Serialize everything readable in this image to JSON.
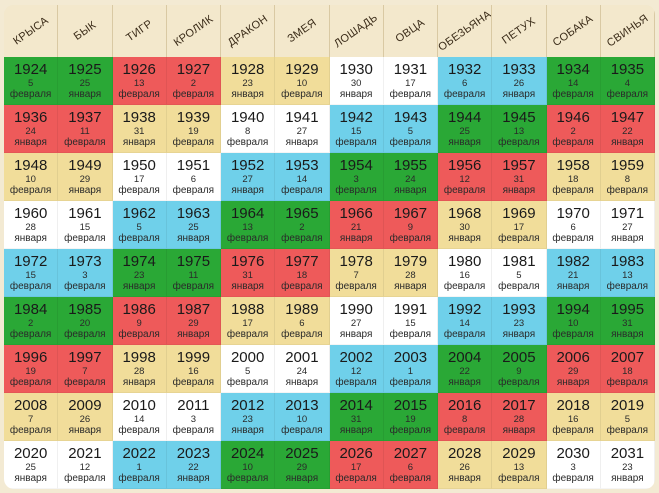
{
  "header": [
    "КРЫСА",
    "БЫК",
    "ТИГР",
    "КРОЛИК",
    "ДРАКОН",
    "ЗМЕЯ",
    "ЛОШАДЬ",
    "ОВЦА",
    "ОБЕЗЬЯНА",
    "ПЕТУХ",
    "СОБАКА",
    "СВИНЬЯ"
  ],
  "palette": {
    "green": "#2aa836",
    "red": "#ee5a5a",
    "yellow": "#f1dd9a",
    "white": "#ffffff",
    "blue": "#6fd0ea"
  },
  "rows": [
    [
      [
        "1924",
        "5",
        "февраля",
        "green"
      ],
      [
        "1925",
        "25",
        "января",
        "green"
      ],
      [
        "1926",
        "13",
        "февраля",
        "red"
      ],
      [
        "1927",
        "2",
        "февраля",
        "red"
      ],
      [
        "1928",
        "23",
        "января",
        "yellow"
      ],
      [
        "1929",
        "10",
        "февраля",
        "yellow"
      ],
      [
        "1930",
        "30",
        "января",
        "white"
      ],
      [
        "1931",
        "17",
        "февраля",
        "white"
      ],
      [
        "1932",
        "6",
        "февраля",
        "blue"
      ],
      [
        "1933",
        "26",
        "января",
        "blue"
      ],
      [
        "1934",
        "14",
        "февраля",
        "green"
      ],
      [
        "1935",
        "4",
        "февраля",
        "green"
      ]
    ],
    [
      [
        "1936",
        "24",
        "января",
        "red"
      ],
      [
        "1937",
        "11",
        "февраля",
        "red"
      ],
      [
        "1938",
        "31",
        "января",
        "yellow"
      ],
      [
        "1939",
        "19",
        "февраля",
        "yellow"
      ],
      [
        "1940",
        "8",
        "февраля",
        "white"
      ],
      [
        "1941",
        "27",
        "января",
        "white"
      ],
      [
        "1942",
        "15",
        "февраля",
        "blue"
      ],
      [
        "1943",
        "5",
        "февраля",
        "blue"
      ],
      [
        "1944",
        "25",
        "января",
        "green"
      ],
      [
        "1945",
        "13",
        "февраля",
        "green"
      ],
      [
        "1946",
        "2",
        "февраля",
        "red"
      ],
      [
        "1947",
        "22",
        "января",
        "red"
      ]
    ],
    [
      [
        "1948",
        "10",
        "февраля",
        "yellow"
      ],
      [
        "1949",
        "29",
        "января",
        "yellow"
      ],
      [
        "1950",
        "17",
        "февраля",
        "white"
      ],
      [
        "1951",
        "6",
        "февраля",
        "white"
      ],
      [
        "1952",
        "27",
        "января",
        "blue"
      ],
      [
        "1953",
        "14",
        "февраля",
        "blue"
      ],
      [
        "1954",
        "3",
        "февраля",
        "green"
      ],
      [
        "1955",
        "24",
        "января",
        "green"
      ],
      [
        "1956",
        "12",
        "февраля",
        "red"
      ],
      [
        "1957",
        "31",
        "января",
        "red"
      ],
      [
        "1958",
        "18",
        "февраля",
        "yellow"
      ],
      [
        "1959",
        "8",
        "февраля",
        "yellow"
      ]
    ],
    [
      [
        "1960",
        "28",
        "января",
        "white"
      ],
      [
        "1961",
        "15",
        "февраля",
        "white"
      ],
      [
        "1962",
        "5",
        "февраля",
        "blue"
      ],
      [
        "1963",
        "25",
        "января",
        "blue"
      ],
      [
        "1964",
        "13",
        "февраля",
        "green"
      ],
      [
        "1965",
        "2",
        "февраля",
        "green"
      ],
      [
        "1966",
        "21",
        "января",
        "red"
      ],
      [
        "1967",
        "9",
        "февраля",
        "red"
      ],
      [
        "1968",
        "30",
        "января",
        "yellow"
      ],
      [
        "1969",
        "17",
        "февраля",
        "yellow"
      ],
      [
        "1970",
        "6",
        "февраля",
        "white"
      ],
      [
        "1971",
        "27",
        "января",
        "white"
      ]
    ],
    [
      [
        "1972",
        "15",
        "февраля",
        "blue"
      ],
      [
        "1973",
        "3",
        "февраля",
        "blue"
      ],
      [
        "1974",
        "23",
        "января",
        "green"
      ],
      [
        "1975",
        "11",
        "февраля",
        "green"
      ],
      [
        "1976",
        "31",
        "января",
        "red"
      ],
      [
        "1977",
        "18",
        "февраля",
        "red"
      ],
      [
        "1978",
        "7",
        "февраля",
        "yellow"
      ],
      [
        "1979",
        "28",
        "января",
        "yellow"
      ],
      [
        "1980",
        "16",
        "февраля",
        "white"
      ],
      [
        "1981",
        "5",
        "февраля",
        "white"
      ],
      [
        "1982",
        "21",
        "января",
        "blue"
      ],
      [
        "1983",
        "13",
        "февраля",
        "blue"
      ]
    ],
    [
      [
        "1984",
        "2",
        "февраля",
        "green"
      ],
      [
        "1985",
        "20",
        "февраля",
        "green"
      ],
      [
        "1986",
        "9",
        "февраля",
        "red"
      ],
      [
        "1987",
        "29",
        "января",
        "red"
      ],
      [
        "1988",
        "17",
        "февраля",
        "yellow"
      ],
      [
        "1989",
        "6",
        "февраля",
        "yellow"
      ],
      [
        "1990",
        "27",
        "января",
        "white"
      ],
      [
        "1991",
        "15",
        "февраля",
        "white"
      ],
      [
        "1992",
        "14",
        "февраля",
        "blue"
      ],
      [
        "1993",
        "23",
        "января",
        "blue"
      ],
      [
        "1994",
        "10",
        "февраля",
        "green"
      ],
      [
        "1995",
        "31",
        "января",
        "green"
      ]
    ],
    [
      [
        "1996",
        "19",
        "февраля",
        "red"
      ],
      [
        "1997",
        "7",
        "февраля",
        "red"
      ],
      [
        "1998",
        "28",
        "января",
        "yellow"
      ],
      [
        "1999",
        "16",
        "февраля",
        "yellow"
      ],
      [
        "2000",
        "5",
        "февраля",
        "white"
      ],
      [
        "2001",
        "24",
        "января",
        "white"
      ],
      [
        "2002",
        "12",
        "февраля",
        "blue"
      ],
      [
        "2003",
        "1",
        "февраля",
        "blue"
      ],
      [
        "2004",
        "22",
        "января",
        "green"
      ],
      [
        "2005",
        "9",
        "февраля",
        "green"
      ],
      [
        "2006",
        "29",
        "января",
        "red"
      ],
      [
        "2007",
        "18",
        "февраля",
        "red"
      ]
    ],
    [
      [
        "2008",
        "7",
        "февраля",
        "yellow"
      ],
      [
        "2009",
        "26",
        "января",
        "yellow"
      ],
      [
        "2010",
        "14",
        "февраля",
        "white"
      ],
      [
        "2011",
        "3",
        "февраля",
        "white"
      ],
      [
        "2012",
        "23",
        "января",
        "blue"
      ],
      [
        "2013",
        "10",
        "февраля",
        "blue"
      ],
      [
        "2014",
        "31",
        "января",
        "green"
      ],
      [
        "2015",
        "19",
        "февраля",
        "green"
      ],
      [
        "2016",
        "8",
        "февраля",
        "red"
      ],
      [
        "2017",
        "28",
        "января",
        "red"
      ],
      [
        "2018",
        "16",
        "февраля",
        "yellow"
      ],
      [
        "2019",
        "5",
        "февраля",
        "yellow"
      ]
    ],
    [
      [
        "2020",
        "25",
        "января",
        "white"
      ],
      [
        "2021",
        "12",
        "февраля",
        "white"
      ],
      [
        "2022",
        "1",
        "февраля",
        "blue"
      ],
      [
        "2023",
        "22",
        "января",
        "blue"
      ],
      [
        "2024",
        "10",
        "февраля",
        "green"
      ],
      [
        "2025",
        "29",
        "января",
        "green"
      ],
      [
        "2026",
        "17",
        "февраля",
        "red"
      ],
      [
        "2027",
        "6",
        "февраля",
        "red"
      ],
      [
        "2028",
        "26",
        "января",
        "yellow"
      ],
      [
        "2029",
        "13",
        "февраля",
        "yellow"
      ],
      [
        "2030",
        "3",
        "февраля",
        "white"
      ],
      [
        "2031",
        "23",
        "января",
        "white"
      ]
    ]
  ]
}
